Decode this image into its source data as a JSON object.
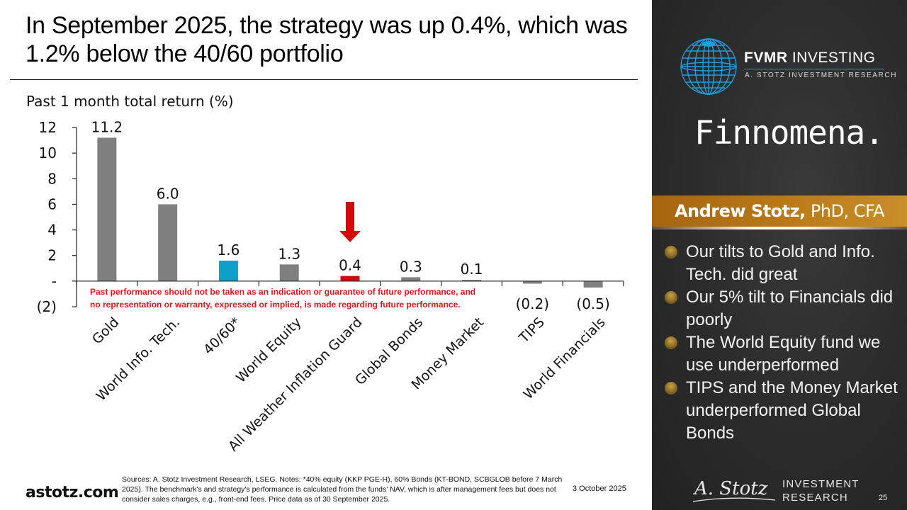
{
  "slide": {
    "title": "In September 2025, the strategy was up 0.4%, which was 1.2% below the 40/60 portfolio",
    "footer": {
      "site": "astotz.com",
      "notes": "Sources: A. Stotz Investment Research, LSEG. Notes: *40% equity (KKP PGE-H), 60% Bonds (KT-BOND, SCBGLOB before 7 March 2025). The benchmark's and strategy's performance is calculated from the funds' NAV, which is after management fees but does not consider sales charges, e.g., front-end fees. Price data as of 30 September 2025.",
      "date": "3 October 2025",
      "page_number": "25"
    }
  },
  "sidebar": {
    "brand_name_bold": "FVMR",
    "brand_name_rest": " INVESTING",
    "brand_subtitle": "A. STOTZ INVESTMENT RESEARCH",
    "partner_logo": "Finnomena.",
    "presenter_name": "Andrew Stotz,",
    "presenter_credentials": " PhD, CFA",
    "bullets": [
      "Our tilts to Gold and Info. Tech. did great",
      "Our 5% tilt to Financials did poorly",
      "The World Equity fund we use underperformed",
      "TIPS and the Money Market underperformed Global Bonds"
    ],
    "bottom_logo_script": "A. Stotz",
    "bottom_logo_line1": "INVESTMENT",
    "bottom_logo_line2": "RESEARCH",
    "icons": {
      "globe": "globe-icon",
      "bullet": "gold-globe-bullet-icon"
    }
  },
  "chart_data": {
    "type": "bar",
    "title": "Past 1 month total return (%)",
    "xlabel": "",
    "ylabel": "",
    "categories": [
      "Gold",
      "World Info. Tech.",
      "40/60*",
      "World Equity",
      "All Weather Inflation Guard",
      "Global Bonds",
      "Money Market",
      "TIPS",
      "World Financials"
    ],
    "values": [
      11.2,
      6.0,
      1.6,
      1.3,
      0.4,
      0.3,
      0.1,
      -0.2,
      -0.5
    ],
    "data_labels": [
      "11.2",
      "6.0",
      "1.6",
      "1.3",
      "0.4",
      "0.3",
      "0.1",
      "(0.2)",
      "(0.5)"
    ],
    "bar_colors": [
      "#7f7f7f",
      "#7f7f7f",
      "#0ea0c8",
      "#7f7f7f",
      "#d10a0a",
      "#7f7f7f",
      "#7f7f7f",
      "#7f7f7f",
      "#7f7f7f"
    ],
    "ylim": [
      -2,
      12
    ],
    "yticks": [
      12,
      10,
      8,
      6,
      4,
      2,
      0,
      -2
    ],
    "ytick_labels": [
      "12",
      "10",
      "8",
      "6",
      "4",
      "2",
      "-",
      "(2)"
    ],
    "grid": false,
    "legend": "none",
    "annotations": {
      "highlight_arrow_category": "All Weather Inflation Guard",
      "arrow_color": "#d10a0a",
      "disclaimer": [
        "Past performance should not be taken as an indication or guarantee of future performance, and",
        "no representation or warranty, expressed or implied, is made regarding future performance."
      ],
      "disclaimer_color": "#e8141c"
    }
  }
}
